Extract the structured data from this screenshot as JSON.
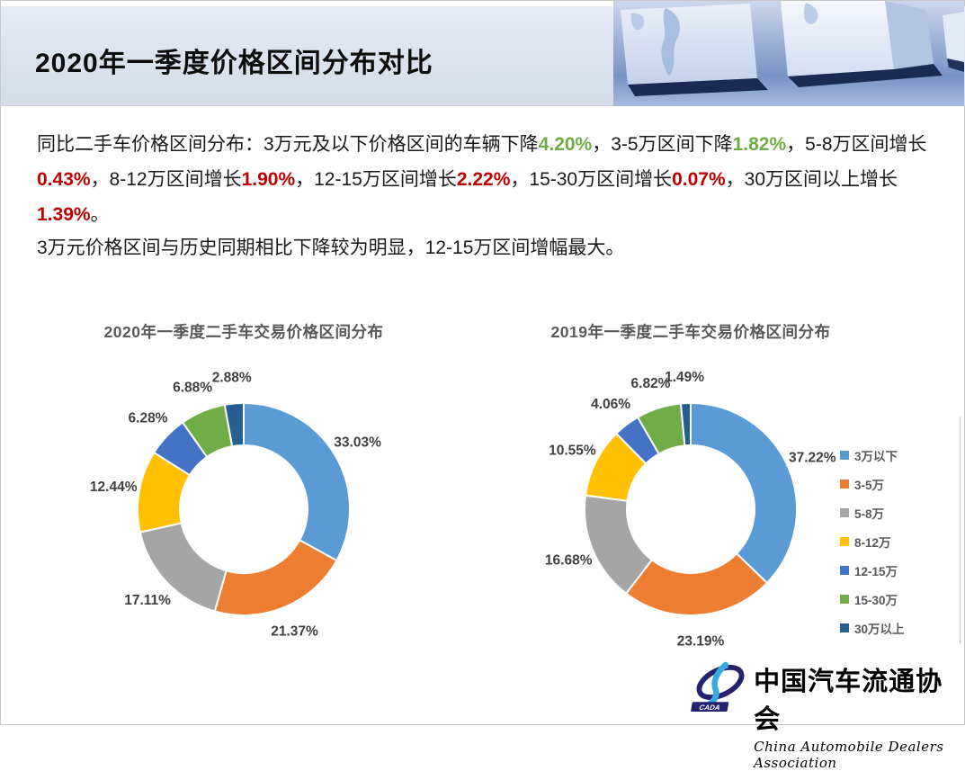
{
  "header": {
    "title": "2020年一季度价格区间分布对比"
  },
  "summary": {
    "paragraph1_segments": [
      {
        "text": "同比二手车价格区间分布：3万元及以下价格区间的车辆下降",
        "color": "default"
      },
      {
        "text": "4.20%",
        "color": "green"
      },
      {
        "text": "，3-5万区间下降",
        "color": "default"
      },
      {
        "text": "1.82%",
        "color": "green"
      },
      {
        "text": "，5-8万区间增长",
        "color": "default"
      },
      {
        "text": "0.43%",
        "color": "red"
      },
      {
        "text": "，8-12万区间增长",
        "color": "default"
      },
      {
        "text": "1.90%",
        "color": "red"
      },
      {
        "text": "，12-15万区间增长",
        "color": "default"
      },
      {
        "text": "2.22%",
        "color": "red"
      },
      {
        "text": "，15-30万区间增长",
        "color": "default"
      },
      {
        "text": "0.07%",
        "color": "red"
      },
      {
        "text": "，30万区间以上增长",
        "color": "default"
      },
      {
        "text": "1.39%",
        "color": "red"
      },
      {
        "text": "。",
        "color": "default"
      }
    ],
    "paragraph2": "3万元价格区间与历史同期相比下降较为明显，12-15万区间增幅最大。"
  },
  "charts_section": {
    "left_title": "2020年一季度二手车交易价格区间分布",
    "right_title": "2019年一季度二手车交易价格区间分布"
  },
  "chart_data": [
    {
      "type": "pie",
      "subtype": "donut",
      "title": "2020年一季度二手车交易价格区间分布",
      "categories": [
        "3万以下",
        "3-5万",
        "5-8万",
        "8-12万",
        "12-15万",
        "15-30万",
        "30万以上"
      ],
      "values": [
        33.03,
        21.37,
        17.11,
        12.44,
        6.28,
        6.88,
        2.88
      ],
      "data_labels": [
        "33.03%",
        "21.37%",
        "17.11%",
        "12.44%",
        "6.28%",
        "6.88%",
        "2.88%"
      ],
      "colors": [
        "#5B9BD5",
        "#ED7D31",
        "#A5A5A5",
        "#FFC000",
        "#4472C4",
        "#70AD47",
        "#255E91"
      ],
      "start_angle_deg": 0,
      "direction": "clockwise",
      "donut_hole_ratio": 0.6,
      "legend_position": "right"
    },
    {
      "type": "pie",
      "subtype": "donut",
      "title": "2019年一季度二手车交易价格区间分布",
      "categories": [
        "3万以下",
        "3-5万",
        "5-8万",
        "8-12万",
        "12-15万",
        "15-30万",
        "30万以上"
      ],
      "values": [
        37.22,
        23.19,
        16.68,
        10.55,
        4.06,
        6.82,
        1.49
      ],
      "data_labels": [
        "37.22%",
        "23.19%",
        "16.68%",
        "10.55%",
        "4.06%",
        "6.82%",
        "1.49%"
      ],
      "colors": [
        "#5B9BD5",
        "#ED7D31",
        "#A5A5A5",
        "#FFC000",
        "#4472C4",
        "#70AD47",
        "#255E91"
      ],
      "start_angle_deg": 0,
      "direction": "clockwise",
      "donut_hole_ratio": 0.6,
      "legend_position": "right"
    }
  ],
  "legend": {
    "items": [
      {
        "label": "3万以下",
        "color": "#5B9BD5"
      },
      {
        "label": "3-5万",
        "color": "#ED7D31"
      },
      {
        "label": "5-8万",
        "color": "#A5A5A5"
      },
      {
        "label": "8-12万",
        "color": "#FFC000"
      },
      {
        "label": "12-15万",
        "color": "#4472C4"
      },
      {
        "label": "15-30万",
        "color": "#70AD47"
      },
      {
        "label": "30万以上",
        "color": "#255E91"
      }
    ]
  },
  "logo": {
    "acronym": "CADA",
    "name_cn": "中国汽车流通协会",
    "name_en": "China Automobile Dealers Association"
  },
  "palette": {
    "green": "#6FAC46",
    "red": "#C00000",
    "default": "#1a1a1a"
  }
}
